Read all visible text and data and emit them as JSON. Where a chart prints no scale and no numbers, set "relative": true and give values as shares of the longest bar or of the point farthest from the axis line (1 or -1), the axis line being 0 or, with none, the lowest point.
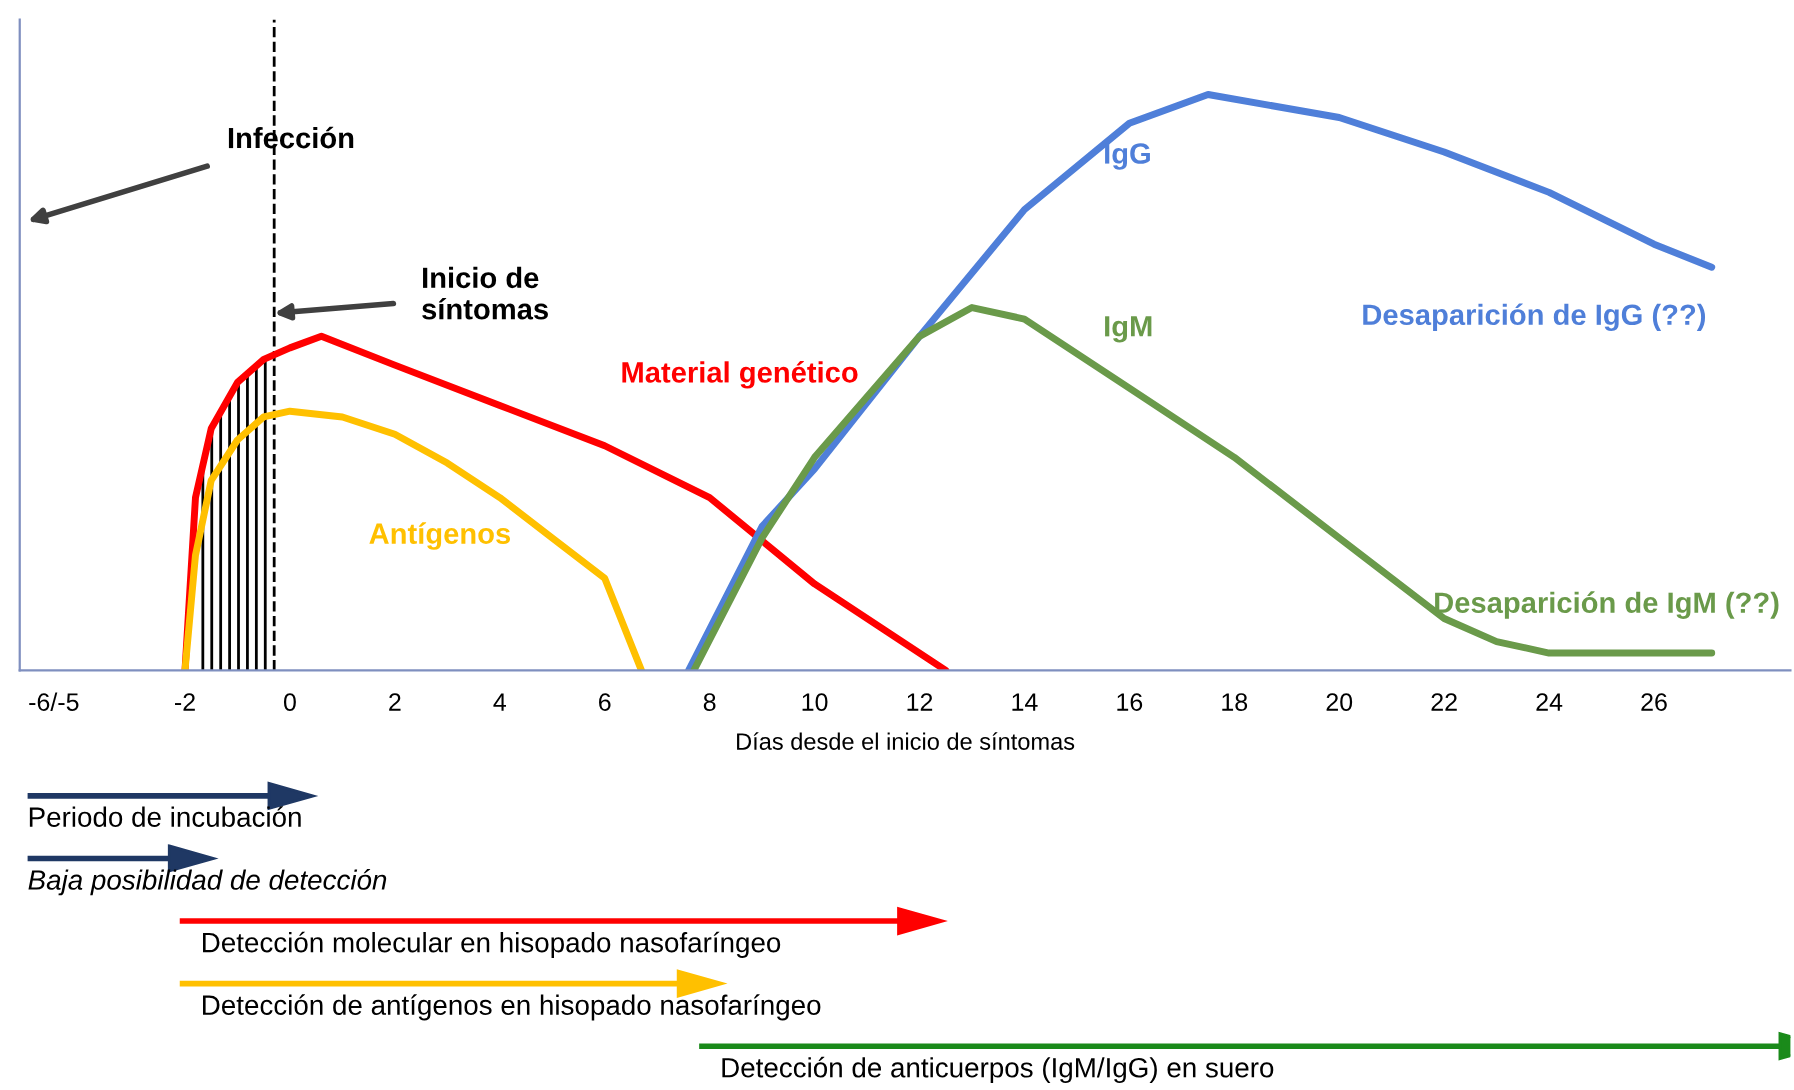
{
  "chart_data": [
    {
      "type": "line",
      "relative": true,
      "xlabel": "Días desde el inicio de síntomas",
      "xlim": [
        -5.15,
        28.6
      ],
      "xticks": [
        {
          "value": -4.5,
          "label": "-6/-5"
        },
        -2,
        0,
        2,
        4,
        6,
        8,
        10,
        12,
        14,
        16,
        18,
        20,
        22,
        24,
        26
      ],
      "series": [
        {
          "name": "Material genético",
          "color": "#ff0000",
          "x": [
            -2,
            -1.8,
            -1.5,
            -1,
            -0.5,
            0,
            0.6,
            2,
            4,
            6,
            8,
            10,
            12.5
          ],
          "values": [
            0,
            0.3,
            0.42,
            0.5,
            0.54,
            0.56,
            0.58,
            0.53,
            0.46,
            0.39,
            0.3,
            0.15,
            0
          ]
        },
        {
          "name": "Antígenos",
          "color": "#ffc000",
          "x": [
            -2,
            -1.8,
            -1.5,
            -1,
            -0.5,
            0,
            1,
            2,
            3,
            4,
            5,
            6,
            6.7
          ],
          "values": [
            0,
            0.2,
            0.33,
            0.4,
            0.44,
            0.45,
            0.44,
            0.41,
            0.36,
            0.3,
            0.23,
            0.16,
            0
          ]
        },
        {
          "name": "IgG",
          "color": "#4f7fd9",
          "x": [
            7.6,
            9,
            10,
            12,
            14,
            16,
            17.5,
            20,
            22,
            24,
            26,
            27.1
          ],
          "values": [
            0,
            0.25,
            0.35,
            0.58,
            0.8,
            0.95,
            1.0,
            0.96,
            0.9,
            0.83,
            0.74,
            0.7
          ]
        },
        {
          "name": "IgM",
          "color": "#6a9a4a",
          "x": [
            7.7,
            9,
            10,
            12,
            13,
            14,
            16,
            18,
            20,
            21,
            22,
            23,
            24,
            26,
            27.1
          ],
          "values": [
            0,
            0.23,
            0.37,
            0.58,
            0.63,
            0.61,
            0.49,
            0.37,
            0.23,
            0.16,
            0.09,
            0.05,
            0.03,
            0.03,
            0.03
          ]
        }
      ],
      "ref_lines": [
        {
          "axis": "x",
          "value": -0.3,
          "color": "#000000",
          "line_style": "dashed"
        }
      ],
      "annotations": [
        "Infección",
        {
          "text": "Inicio de\nsíntomas",
          "x": -0.3,
          "y": 0.62
        },
        "Desaparición de IgG (??)",
        "Desaparición de IgM (??)"
      ],
      "grid": false,
      "legend": false
    },
    {
      "type": "bar",
      "orientation": "horizontal",
      "tick_labels": false,
      "categories": [
        "Periodo de incubación",
        "Baja posibilidad de detección",
        "Detección molecular en hisopado nasofaríngeo",
        "Detección de antígenos en hisopado nasofaríngeo",
        "Detección de anticuerpos (IgM/IgG) en suero"
      ],
      "base": [
        -5.0,
        -5.0,
        -2.1,
        -2.1,
        7.8
      ],
      "values": [
        4.6,
        2.7,
        13.7,
        9.5,
        20.6
      ],
      "colors": [
        "#1f3864",
        "#1f3864",
        "#ff0000",
        "#ffc000",
        "#1a8a1a"
      ],
      "xlim": [
        -5.15,
        28.6
      ]
    }
  ]
}
